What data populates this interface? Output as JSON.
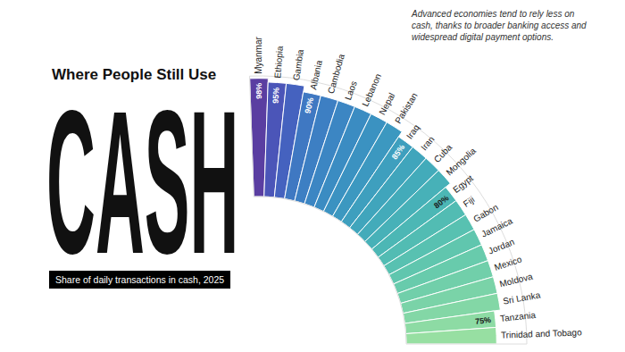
{
  "chart_data": {
    "type": "radial_bar",
    "title": "Where People Still Use CASH",
    "subtitle": "Share of daily transactions in cash, 2025",
    "note": "Advanced economies tend to rely less on cash, thanks to broader banking access and widespread digital payment options.",
    "categories": [
      "Myanmar",
      "Ethiopia",
      "Gambia",
      "Albania",
      "Cambodia",
      "Laos",
      "Lebanon",
      "Nepal",
      "Pakistan",
      "Iraq",
      "Iran",
      "Cuba",
      "Mongolia",
      "Egypt",
      "Fiji",
      "Gabon",
      "Jamaica",
      "Jordan",
      "Mexico",
      "Moldova",
      "Sri Lanka",
      "Tanzania",
      "Trinidad and Tobago"
    ],
    "values": [
      98,
      95,
      95,
      90,
      90,
      90,
      90,
      90,
      90,
      85,
      85,
      85,
      85,
      80,
      80,
      80,
      80,
      80,
      80,
      80,
      80,
      75,
      75
    ],
    "value_labels": [
      "98%",
      "95%",
      null,
      "90%",
      null,
      null,
      null,
      null,
      null,
      "85%",
      null,
      null,
      null,
      "80%",
      null,
      null,
      null,
      null,
      null,
      null,
      null,
      "75%",
      null
    ],
    "colors": [
      "#5a3ea1",
      "#4b55b8",
      "#4562bf",
      "#3f78c2",
      "#3d7fc3",
      "#3c86c3",
      "#3b8cc2",
      "#3b92c1",
      "#3c98c0",
      "#3e9fbe",
      "#40a5bc",
      "#43abba",
      "#47b1b8",
      "#4cb7b5",
      "#52bcb3",
      "#58c1b1",
      "#60c6ae",
      "#68cbac",
      "#71cfaa",
      "#7ad3a8",
      "#83d7a6",
      "#8ddba4",
      "#97dfa2"
    ],
    "ylim": [
      0,
      100
    ],
    "tick_labels": false,
    "data_labels": true,
    "grid": false
  }
}
